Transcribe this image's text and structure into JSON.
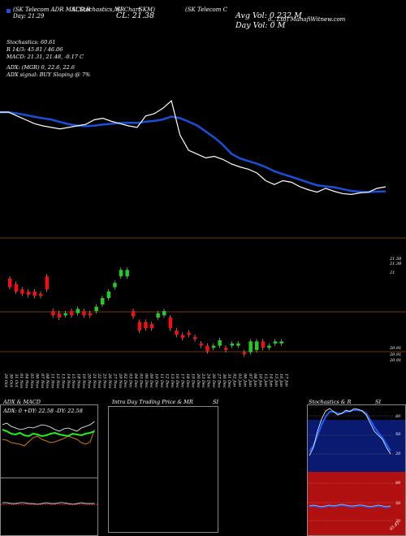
{
  "header": {
    "top_left_line1": "(SK Telecom ADR MACD,R",
    "top_left_line2": "SI,Stochastics,MR",
    "top_left_line3": "SI Chart",
    "top_left_line4": "SKM)",
    "top_right": "(SK Telecom C",
    "top_right2": "o., Ltd) ManafiWitnew.com",
    "day_label": "Day: 21.29",
    "cl_label": "CL: 21.38",
    "avg_vol": "Avg Vol: 0.232  M",
    "day_vol": "Day Vol: 0   M"
  },
  "indicators": {
    "stochastics": "Stochastics: 60.61",
    "r_line": "R         14/3: 45.81 / 46.06",
    "macd": "MACD: 21.31, 21.48, -0.17 C",
    "adx": "ADX:                          (MGR) 0, 22.6, 22.6",
    "adx_signal": "ADX  signal:                        BUY Sloping @ 7%"
  },
  "price_axis": {
    "labels": [
      "21.58",
      "21.38",
      "21",
      "20.91",
      "20.91",
      "20.91"
    ]
  },
  "dates": [
    "29 Oct",
    "30 Oct",
    "31 Oct",
    "01 Nov",
    "04 Nov",
    "05 Nov",
    "06 Nov",
    "07 Nov",
    "08 Nov",
    "11 Nov",
    "12 Nov",
    "13 Nov",
    "14 Nov",
    "15 Nov",
    "18 Nov",
    "19 Nov",
    "20 Nov",
    "21 Nov",
    "22 Nov",
    "25 Nov",
    "26 Nov",
    "27 Nov",
    "29 Nov",
    "02 Dec",
    "03 Dec",
    "04 Dec",
    "05 Dec",
    "06 Dec",
    "09 Dec",
    "10 Dec",
    "11 Dec",
    "12 Dec",
    "13 Dec",
    "16 Dec",
    "17 Dec",
    "18 Dec",
    "19 Dec",
    "20 Dec",
    "23 Dec",
    "24 Dec",
    "26 Dec",
    "27 Dec",
    "30 Dec",
    "31 Dec",
    "02 Jan",
    "03 Jan",
    "06 Jan",
    "07 Jan",
    "08 Jan",
    "10 Jan",
    "13 Jan",
    "14 Jan",
    "15 Jan",
    "16 Jan",
    "17 Jan"
  ],
  "panels": {
    "adx_macd_title": "ADX  & MACD",
    "adx_readout": "ADX: 0   +DY: 22.58   -DY: 22.58",
    "intraday_title": "Intra  Day Trading Price  & MR",
    "intraday_si": "SI",
    "stoch_title": "Stochastics & R",
    "stoch_si": "SI",
    "stoch_ticks": [
      "80",
      "50",
      "20"
    ],
    "rsi_ticks": [
      "80",
      "50",
      "20"
    ],
    "rsi_small": "45.81"
  },
  "colors": {
    "background": "#000000",
    "ma_line": "#1a4fd6",
    "price_line": "#ffffff",
    "up_candle": "#22cc22",
    "down_candle": "#ee1111",
    "grid": "#8a4a10",
    "stoch_bg": "#0a1a70",
    "rsi_bg": "#b01010",
    "adx_green": "#22ee22",
    "adx_orange": "#cc7a1a"
  },
  "chart_data": {
    "type": "line",
    "title": "",
    "series": [
      {
        "name": "",
        "values": [
          21.9,
          21.9,
          21.85,
          21.8,
          21.75,
          21.72,
          21.7,
          21.68,
          21.7,
          21.72,
          21.74,
          21.8,
          21.82,
          21.78,
          21.75,
          21.72,
          21.7,
          21.85,
          21.88,
          21.95,
          22.05,
          21.6,
          21.4,
          21.35,
          21.3,
          21.32,
          21.28,
          21.22,
          21.18,
          21.15,
          21.1,
          21.0,
          20.95,
          21.0,
          20.98,
          20.92,
          20.88,
          20.85,
          20.9,
          20.86,
          20.83,
          20.82,
          20.84,
          20.85,
          20.9,
          20.92
        ]
      }
    ],
    "candles": [
      {
        "o": 21.6,
        "c": 21.52,
        "dir": "down"
      },
      {
        "o": 21.55,
        "c": 21.48,
        "dir": "down"
      },
      {
        "o": 21.5,
        "c": 21.46,
        "dir": "down"
      },
      {
        "o": 21.48,
        "c": 21.45,
        "dir": "down"
      },
      {
        "o": 21.48,
        "c": 21.44,
        "dir": "down"
      },
      {
        "o": 21.46,
        "c": 21.44,
        "dir": "down"
      },
      {
        "o": 21.62,
        "c": 21.5,
        "dir": "down"
      },
      {
        "o": 21.3,
        "c": 21.26,
        "dir": "down"
      },
      {
        "o": 21.28,
        "c": 21.24,
        "dir": "down"
      },
      {
        "o": 21.26,
        "c": 21.28,
        "dir": "up"
      },
      {
        "o": 21.3,
        "c": 21.26,
        "dir": "down"
      },
      {
        "o": 21.28,
        "c": 21.32,
        "dir": "up"
      },
      {
        "o": 21.3,
        "c": 21.26,
        "dir": "down"
      },
      {
        "o": 21.28,
        "c": 21.26,
        "dir": "down"
      },
      {
        "o": 21.3,
        "c": 21.34,
        "dir": "up"
      },
      {
        "o": 21.36,
        "c": 21.42,
        "dir": "up"
      },
      {
        "o": 21.42,
        "c": 21.48,
        "dir": "up"
      },
      {
        "o": 21.52,
        "c": 21.56,
        "dir": "up"
      },
      {
        "o": 21.62,
        "c": 21.68,
        "dir": "up"
      },
      {
        "o": 21.62,
        "c": 21.68,
        "dir": "up"
      },
      {
        "o": 21.3,
        "c": 21.25,
        "dir": "down"
      },
      {
        "o": 21.2,
        "c": 21.12,
        "dir": "down"
      },
      {
        "o": 21.2,
        "c": 21.14,
        "dir": "down"
      },
      {
        "o": 21.18,
        "c": 21.14,
        "dir": "down"
      },
      {
        "o": 21.24,
        "c": 21.28,
        "dir": "up"
      },
      {
        "o": 21.26,
        "c": 21.3,
        "dir": "up"
      },
      {
        "o": 21.24,
        "c": 21.14,
        "dir": "down"
      },
      {
        "o": 21.12,
        "c": 21.08,
        "dir": "down"
      },
      {
        "o": 21.08,
        "c": 21.05,
        "dir": "down"
      },
      {
        "o": 21.1,
        "c": 21.08,
        "dir": "down"
      },
      {
        "o": 21.06,
        "c": 21.04,
        "dir": "down"
      },
      {
        "o": 21.0,
        "c": 20.98,
        "dir": "down"
      },
      {
        "o": 20.98,
        "c": 20.93,
        "dir": "down"
      },
      {
        "o": 20.96,
        "c": 20.98,
        "dir": "up"
      },
      {
        "o": 20.98,
        "c": 21.03,
        "dir": "up"
      },
      {
        "o": 20.96,
        "c": 20.94,
        "dir": "down"
      },
      {
        "o": 20.98,
        "c": 21.0,
        "dir": "up"
      },
      {
        "o": 20.98,
        "c": 21.0,
        "dir": "up"
      },
      {
        "o": 20.92,
        "c": 20.9,
        "dir": "down"
      },
      {
        "o": 20.92,
        "c": 21.02,
        "dir": "up"
      },
      {
        "o": 20.94,
        "c": 21.02,
        "dir": "up"
      },
      {
        "o": 21.02,
        "c": 20.96,
        "dir": "down"
      },
      {
        "o": 20.96,
        "c": 20.98,
        "dir": "up"
      },
      {
        "o": 21.0,
        "c": 21.02,
        "dir": "up"
      },
      {
        "o": 21.0,
        "c": 21.02,
        "dir": "up"
      }
    ]
  }
}
